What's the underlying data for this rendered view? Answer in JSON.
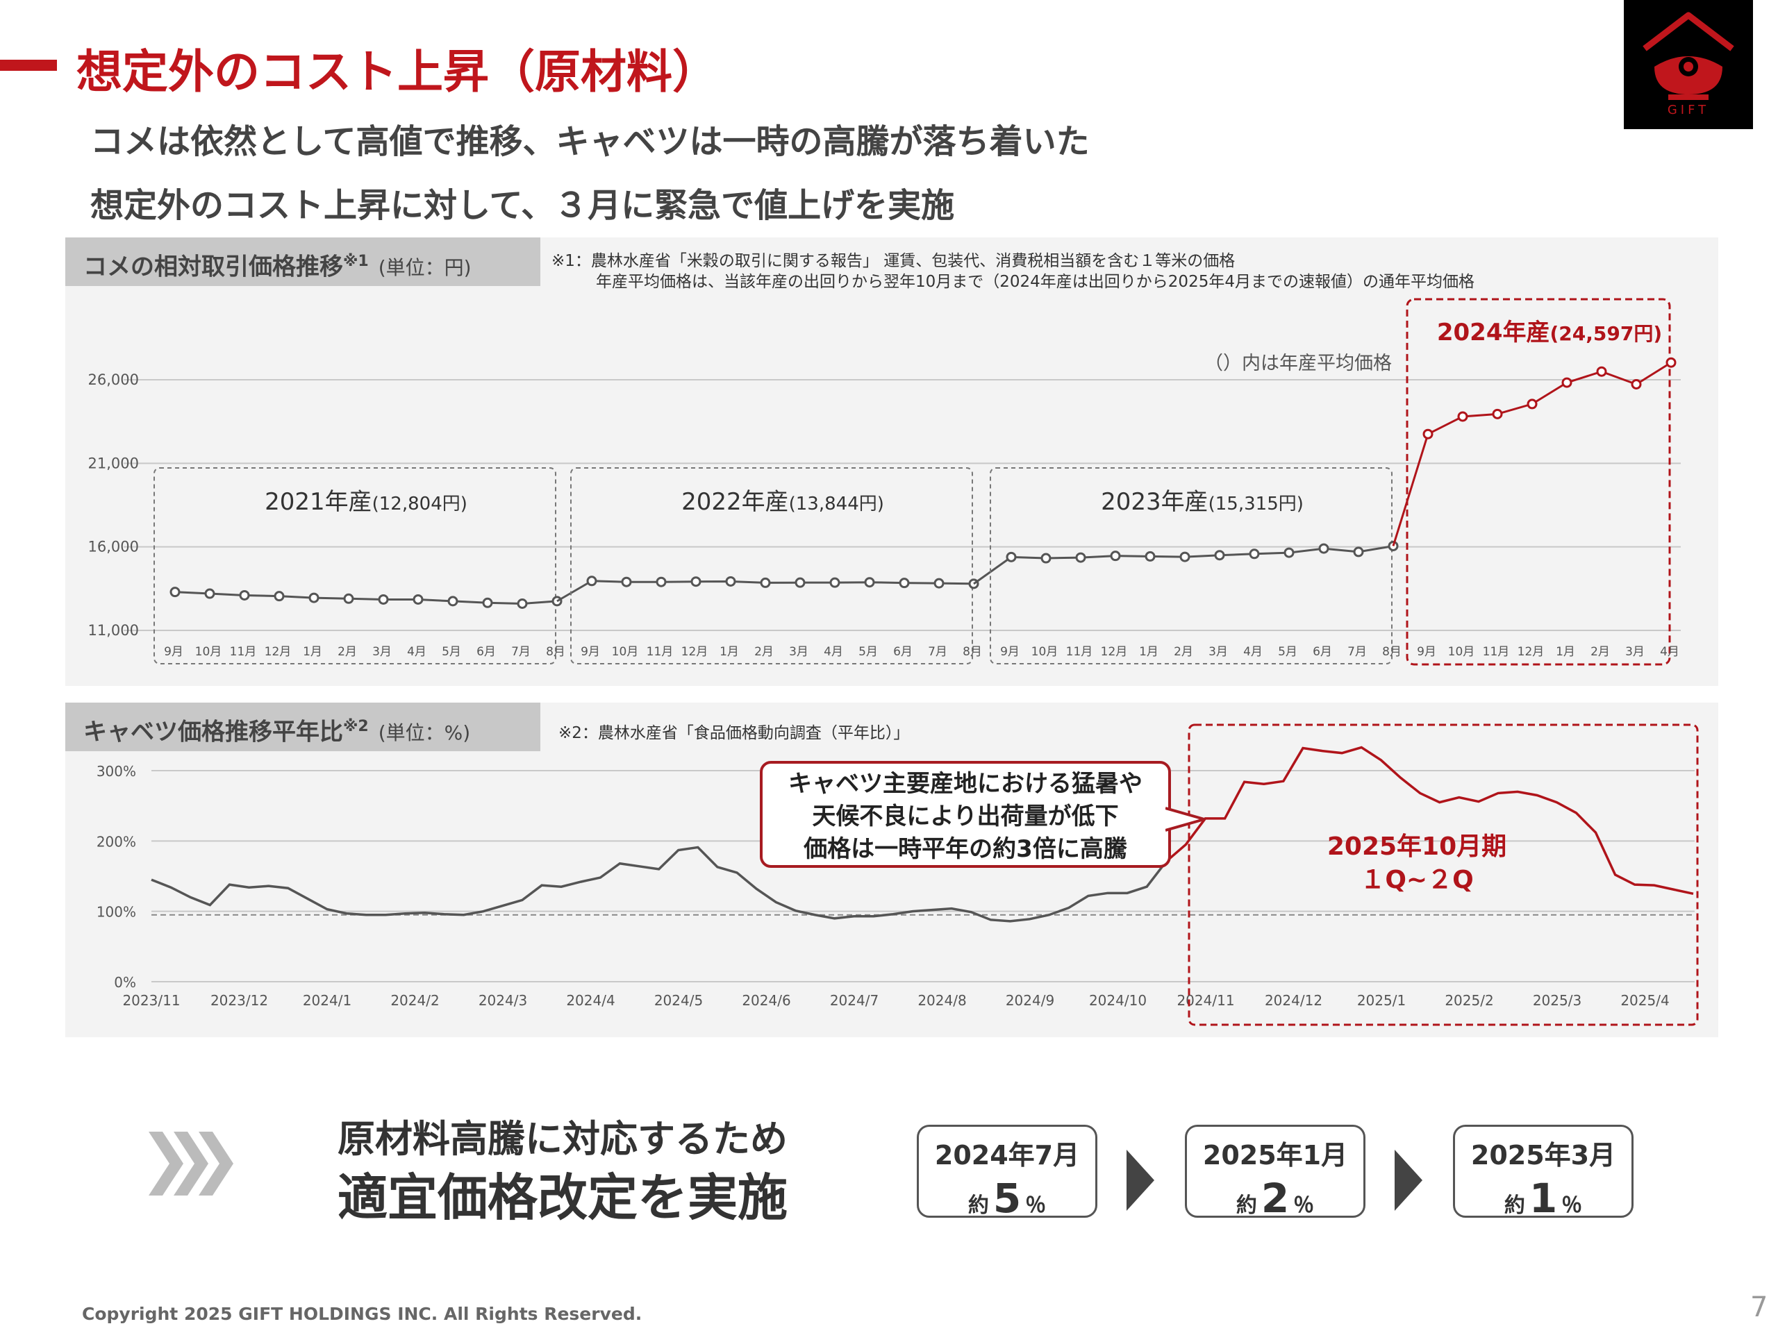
{
  "header": {
    "title": "想定外のコスト上昇（原材料）",
    "subtitle1": "コメは依然として高値で推移、キャベツは一時の高騰が落ち着いた",
    "subtitle2": "想定外のコスト上昇に対して、３月に緊急で値上げを実施"
  },
  "logo": {
    "text": "GIFT"
  },
  "rice_panel": {
    "title": "コメの相対取引価格推移",
    "sup": "※1",
    "unit": "(単位：円)",
    "note1": "※1：農林水産省「米穀の取引に関する報告」 運賃、包装代、消費税相当額を含む１等米の価格",
    "note2": "年産平均価格は、当該年産の出回りから翌年10月まで（2024年産は出回りから2025年4月までの速報値）の通年平均価格",
    "avg_note": "（）内は年産平均価格",
    "group_labels": [
      {
        "year": "2021年産",
        "avg": "(12,804円)"
      },
      {
        "year": "2022年産",
        "avg": "(13,844円)"
      },
      {
        "year": "2023年産",
        "avg": "(15,315円)"
      },
      {
        "year": "2024年産",
        "avg": "(24,597円)"
      }
    ]
  },
  "cabbage_panel": {
    "title": "キャベツ価格推移平年比",
    "sup": "※2",
    "unit": "(単位：%)",
    "note": "※2：農林水産省「食品価格動向調査（平年比）」",
    "callout": [
      "キャベツ主要産地における猛暑や",
      "天候不良により出荷量が低下",
      "価格は一時平年の約3倍に高騰"
    ],
    "period_label": [
      "2025年10月期",
      "１Q~２Q"
    ]
  },
  "chart_data": [
    {
      "type": "line",
      "y_ticks": [
        "26,000",
        "21,000",
        "16,000",
        "11,000"
      ],
      "ylim": [
        11000,
        26000
      ],
      "grid": true,
      "groups": [
        {
          "name": "2021年産",
          "months": [
            "9月",
            "10月",
            "11月",
            "12月",
            "1月",
            "2月",
            "3月",
            "4月",
            "5月",
            "6月",
            "7月",
            "8月"
          ],
          "values": [
            13300,
            13200,
            13100,
            13050,
            12950,
            12900,
            12850,
            12850,
            12750,
            12650,
            12600,
            12750
          ],
          "highlight": false
        },
        {
          "name": "2022年産",
          "months": [
            "9月",
            "10月",
            "11月",
            "12月",
            "1月",
            "2月",
            "3月",
            "4月",
            "5月",
            "6月",
            "7月",
            "8月"
          ],
          "values": [
            13960,
            13900,
            13900,
            13920,
            13930,
            13850,
            13860,
            13860,
            13880,
            13840,
            13820,
            13790
          ],
          "highlight": false
        },
        {
          "name": "2023年産",
          "months": [
            "9月",
            "10月",
            "11月",
            "12月",
            "1月",
            "2月",
            "3月",
            "4月",
            "5月",
            "6月",
            "7月",
            "8月"
          ],
          "values": [
            15390,
            15320,
            15360,
            15460,
            15430,
            15400,
            15500,
            15580,
            15650,
            15900,
            15700,
            16050
          ],
          "highlight": false
        },
        {
          "name": "2024年産",
          "months": [
            "9月",
            "10月",
            "11月",
            "12月",
            "1月",
            "2月",
            "3月",
            "4月"
          ],
          "values": [
            22750,
            23800,
            23950,
            24550,
            25830,
            26490,
            25730,
            27030
          ],
          "highlight": true
        }
      ]
    },
    {
      "type": "line",
      "y_ticks": [
        "300%",
        "200%",
        "100%",
        "0%"
      ],
      "ylim": [
        0,
        300
      ],
      "reference_line": 95,
      "x_ticks": [
        "2023/11",
        "2023/12",
        "2024/1",
        "2024/2",
        "2024/3",
        "2024/4",
        "2024/5",
        "2024/6",
        "2024/7",
        "2024/8",
        "2024/9",
        "2024/10",
        "2024/11",
        "2024/12",
        "2025/1",
        "2025/2",
        "2025/3",
        "2025/4"
      ],
      "values": [
        145,
        134,
        120,
        109,
        138,
        134,
        136,
        133,
        118,
        103,
        97,
        95,
        95,
        97,
        98,
        96,
        95,
        100,
        108,
        116,
        137,
        135,
        142,
        148,
        168,
        164,
        160,
        187,
        191,
        163,
        155,
        132,
        113,
        101,
        95,
        90,
        93,
        93,
        96,
        100,
        102,
        104,
        99,
        88,
        86,
        89,
        95,
        105,
        122,
        126,
        126,
        135,
        171,
        195,
        232,
        232,
        284,
        281,
        285,
        332,
        328,
        325,
        333,
        315,
        290,
        268,
        255,
        262,
        256,
        268,
        270,
        265,
        255,
        240,
        212,
        152,
        138,
        137,
        131,
        125
      ],
      "highlight_from_index": 52
    }
  ],
  "bottom": {
    "heading1": "原材料高騰に対応するため",
    "heading2": "適宜価格改定を実施",
    "steps": [
      {
        "date": "2024年7月",
        "prefix": "約",
        "value": "5",
        "unit": "％"
      },
      {
        "date": "2025年1月",
        "prefix": "約",
        "value": "2",
        "unit": "％"
      },
      {
        "date": "2025年3月",
        "prefix": "約",
        "value": "1",
        "unit": "％"
      }
    ]
  },
  "footer": {
    "copyright": "Copyright 2025 GIFT HOLDINGS INC. All Rights Reserved.",
    "page": "7"
  },
  "colors": {
    "accent": "#c0161c",
    "line": "#555555",
    "highlight": "#b0141a"
  }
}
